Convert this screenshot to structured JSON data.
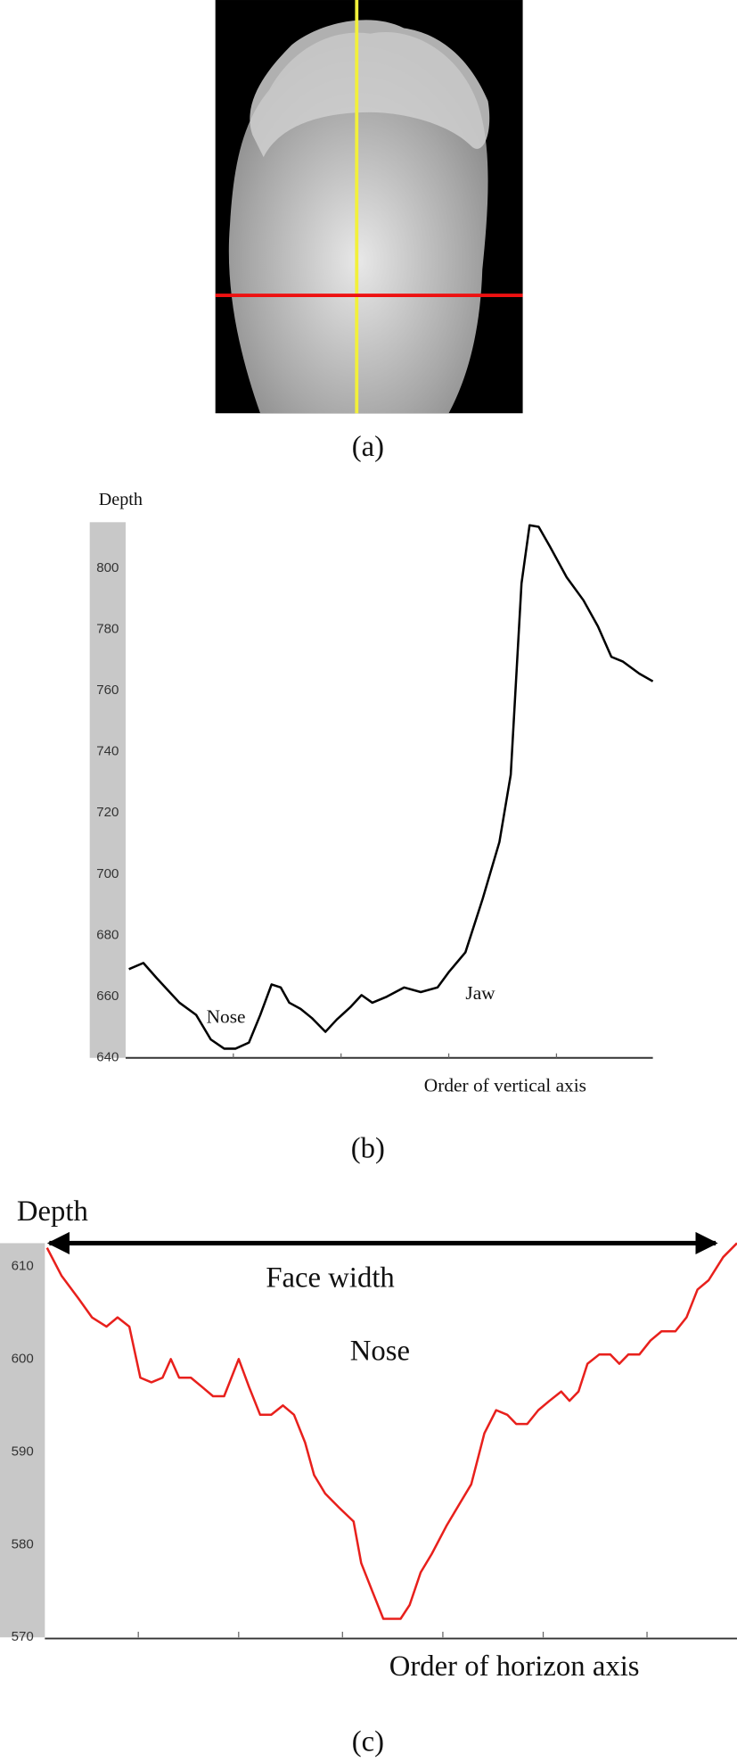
{
  "captions": [
    "(a)",
    "(b)",
    "(c)"
  ],
  "chart_data": [
    {
      "type": "line",
      "y_label": "Depth",
      "x_label": "Order of vertical axis",
      "annotations": [
        "Nose",
        "Jaw"
      ],
      "color": "#000000",
      "x": [
        0.6,
        3.3,
        5.8,
        7.9,
        10,
        13.1,
        15.8,
        18.3,
        20.4,
        22.9,
        25,
        27.1,
        28.8,
        30.4,
        32.5,
        34.6,
        37.1,
        39.2,
        41.7,
        43.8,
        45.8,
        48.5,
        51.7,
        54.8,
        57.9,
        60,
        63.1,
        66.3,
        69.4,
        71.5,
        73.5,
        75,
        76.7,
        78.8,
        81.9,
        85,
        87.7,
        90.2,
        92.3,
        95.4,
        97.9
      ],
      "values": [
        669,
        671,
        666,
        662,
        658,
        654,
        646,
        643,
        643,
        645,
        654,
        664,
        663,
        658,
        656,
        653,
        648.5,
        652.5,
        656.5,
        660.5,
        658,
        660,
        663,
        661.5,
        663,
        668,
        674.5,
        692,
        710.5,
        732.5,
        795,
        814,
        813.5,
        807,
        797,
        789.5,
        781,
        771,
        769.5,
        765.5,
        763
      ],
      "xlim": [
        0,
        97.9
      ],
      "xticks": [
        20,
        40,
        60,
        80
      ],
      "ylim": [
        640,
        815
      ],
      "yticks": [
        640,
        660,
        680,
        700,
        720,
        740,
        760,
        780,
        800
      ]
    },
    {
      "type": "line",
      "y_label": "Depth",
      "x_label": "Order of horizon axis",
      "annotations": [
        "Face width",
        "Nose"
      ],
      "color": "#e8201c",
      "x": [
        0.3,
        2.4,
        4.9,
        6.8,
        8.9,
        10.5,
        12.2,
        13.8,
        15.4,
        17,
        18.2,
        19.4,
        21.1,
        22.7,
        24.3,
        25.9,
        28,
        29.5,
        31.1,
        32.7,
        34.4,
        36,
        37.6,
        38.9,
        40.5,
        42.5,
        44.6,
        45.7,
        47.3,
        48.9,
        51.4,
        52.7,
        54.3,
        55.9,
        58,
        60,
        61.6,
        63.5,
        65.2,
        66.8,
        68.1,
        69.7,
        71.3,
        72.9,
        74.6,
        75.8,
        77.1,
        78.4,
        80.1,
        81.7,
        83,
        84.3,
        85.9,
        87.5,
        89.1,
        91.1,
        92.7,
        94.3,
        95.9,
        98,
        100
      ],
      "values": [
        612,
        609,
        606.5,
        604.5,
        603.5,
        604.5,
        603.5,
        598,
        597.5,
        598,
        600,
        598,
        598,
        597,
        596,
        596,
        600,
        597,
        594,
        594,
        595,
        594,
        591,
        587.5,
        585.5,
        584,
        582.5,
        578,
        575,
        572,
        572,
        573.5,
        577,
        579,
        582,
        584.5,
        586.5,
        592,
        594.5,
        594,
        593,
        593,
        594.5,
        595.5,
        596.5,
        595.5,
        596.5,
        599.5,
        600.5,
        600.5,
        599.5,
        600.5,
        600.5,
        602,
        603,
        603,
        604.5,
        607.5,
        608.5,
        611,
        612.5
      ],
      "xlim": [
        0,
        100
      ],
      "xticks": [
        13.5,
        28,
        43,
        57.5,
        72,
        87
      ],
      "ylim": [
        570,
        612.5
      ],
      "yticks": [
        570,
        580,
        590,
        600,
        610
      ]
    }
  ]
}
